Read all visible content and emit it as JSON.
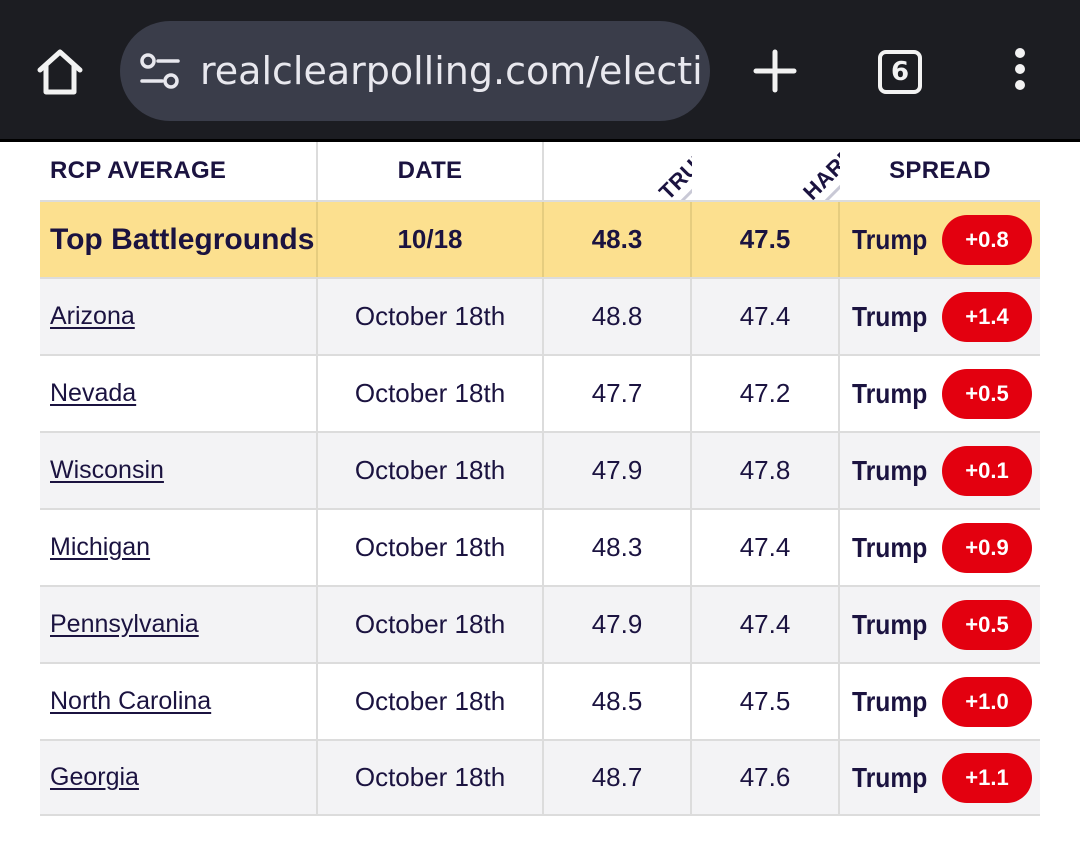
{
  "browser": {
    "url": "realclearpolling.com/electic",
    "tab_count": "6",
    "icons": {
      "home": "home-icon",
      "site": "tune-icon",
      "new_tab": "plus-icon",
      "menu": "more-vert-icon"
    }
  },
  "table": {
    "headers": {
      "name": "RCP AVERAGE",
      "date": "DATE",
      "trump": "TRUMP",
      "harris": "HARRIS",
      "spread": "SPREAD"
    },
    "summary": {
      "name": "Top Battlegrounds",
      "date": "10/18",
      "trump": "48.3",
      "harris": "47.5",
      "leader": "Trump",
      "spread": "+0.8"
    },
    "rows": [
      {
        "name": "Arizona",
        "date": "October 18th",
        "trump": "48.8",
        "harris": "47.4",
        "leader": "Trump",
        "spread": "+1.4"
      },
      {
        "name": "Nevada",
        "date": "October 18th",
        "trump": "47.7",
        "harris": "47.2",
        "leader": "Trump",
        "spread": "+0.5"
      },
      {
        "name": "Wisconsin",
        "date": "October 18th",
        "trump": "47.9",
        "harris": "47.8",
        "leader": "Trump",
        "spread": "+0.1"
      },
      {
        "name": "Michigan",
        "date": "October 18th",
        "trump": "48.3",
        "harris": "47.4",
        "leader": "Trump",
        "spread": "+0.9"
      },
      {
        "name": "Pennsylvania",
        "date": "October 18th",
        "trump": "47.9",
        "harris": "47.4",
        "leader": "Trump",
        "spread": "+0.5"
      },
      {
        "name": "North Carolina",
        "date": "October 18th",
        "trump": "48.5",
        "harris": "47.5",
        "leader": "Trump",
        "spread": "+1.0"
      },
      {
        "name": "Georgia",
        "date": "October 18th",
        "trump": "48.7",
        "harris": "47.6",
        "leader": "Trump",
        "spread": "+1.1"
      }
    ]
  },
  "colors": {
    "summary_bg": "#fce08f",
    "spread_badge": "#e3000f",
    "text_dark": "#1b1340",
    "chrome_bg": "#1c1d22"
  }
}
